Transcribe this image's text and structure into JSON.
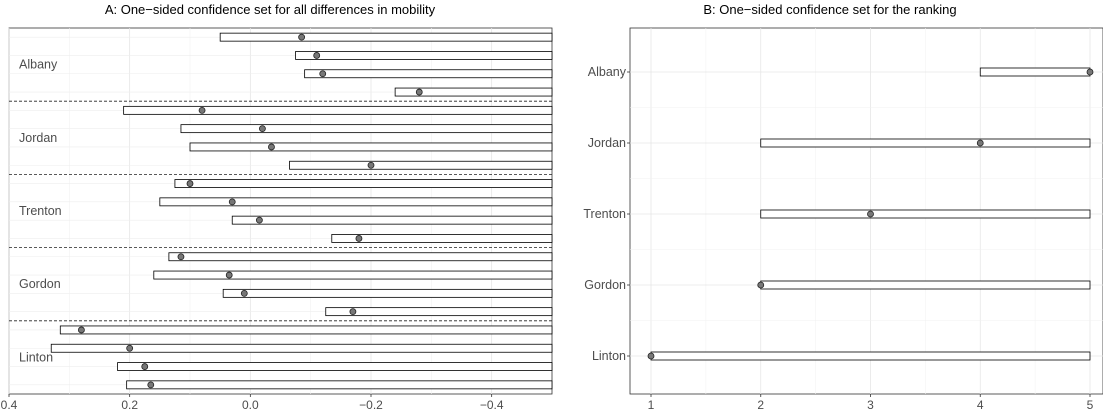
{
  "chart_data": [
    {
      "type": "interval",
      "title": "A: One−sided confidence set for all differences in mobility",
      "x_reversed": true,
      "xlim": [
        0.4,
        -0.5
      ],
      "xticks": [
        0.4,
        0.2,
        0.0,
        -0.2,
        -0.4
      ],
      "xtick_labels": [
        "0.4",
        "0.2",
        "0.0",
        "−0.2",
        "−0.4"
      ],
      "grid": true,
      "groups": [
        {
          "label": "Albany",
          "intervals": [
            {
              "lower": -0.5,
              "upper": 0.05,
              "estimate": -0.085
            },
            {
              "lower": -0.5,
              "upper": -0.075,
              "estimate": -0.11
            },
            {
              "lower": -0.5,
              "upper": -0.09,
              "estimate": -0.12
            },
            {
              "lower": -0.5,
              "upper": -0.24,
              "estimate": -0.28
            }
          ]
        },
        {
          "label": "Jordan",
          "intervals": [
            {
              "lower": -0.5,
              "upper": 0.21,
              "estimate": 0.08
            },
            {
              "lower": -0.5,
              "upper": 0.115,
              "estimate": -0.02
            },
            {
              "lower": -0.5,
              "upper": 0.1,
              "estimate": -0.035
            },
            {
              "lower": -0.5,
              "upper": -0.065,
              "estimate": -0.2
            }
          ]
        },
        {
          "label": "Trenton",
          "intervals": [
            {
              "lower": -0.5,
              "upper": 0.125,
              "estimate": 0.1
            },
            {
              "lower": -0.5,
              "upper": 0.15,
              "estimate": 0.03
            },
            {
              "lower": -0.5,
              "upper": 0.03,
              "estimate": -0.015
            },
            {
              "lower": -0.5,
              "upper": -0.135,
              "estimate": -0.18
            }
          ]
        },
        {
          "label": "Gordon",
          "intervals": [
            {
              "lower": -0.5,
              "upper": 0.135,
              "estimate": 0.115
            },
            {
              "lower": -0.5,
              "upper": 0.16,
              "estimate": 0.035
            },
            {
              "lower": -0.5,
              "upper": 0.045,
              "estimate": 0.01
            },
            {
              "lower": -0.5,
              "upper": -0.125,
              "estimate": -0.17
            }
          ]
        },
        {
          "label": "Linton",
          "intervals": [
            {
              "lower": -0.5,
              "upper": 0.315,
              "estimate": 0.28
            },
            {
              "lower": -0.5,
              "upper": 0.33,
              "estimate": 0.2
            },
            {
              "lower": -0.5,
              "upper": 0.22,
              "estimate": 0.175
            },
            {
              "lower": -0.5,
              "upper": 0.205,
              "estimate": 0.165
            }
          ]
        }
      ]
    },
    {
      "type": "interval",
      "title": "B: One−sided confidence set for the ranking",
      "xlim": [
        1,
        5
      ],
      "xticks": [
        1,
        2,
        3,
        4,
        5
      ],
      "xtick_labels": [
        "1",
        "2",
        "3",
        "4",
        "5"
      ],
      "grid": true,
      "categories": [
        "Albany",
        "Jordan",
        "Trenton",
        "Gordon",
        "Linton"
      ],
      "intervals": [
        {
          "label": "Albany",
          "lower": 4,
          "upper": 5,
          "estimate": 5
        },
        {
          "label": "Jordan",
          "lower": 2,
          "upper": 5,
          "estimate": 4
        },
        {
          "label": "Trenton",
          "lower": 2,
          "upper": 5,
          "estimate": 3
        },
        {
          "label": "Gordon",
          "lower": 2,
          "upper": 5,
          "estimate": 2
        },
        {
          "label": "Linton",
          "lower": 1,
          "upper": 5,
          "estimate": 1
        }
      ]
    }
  ]
}
